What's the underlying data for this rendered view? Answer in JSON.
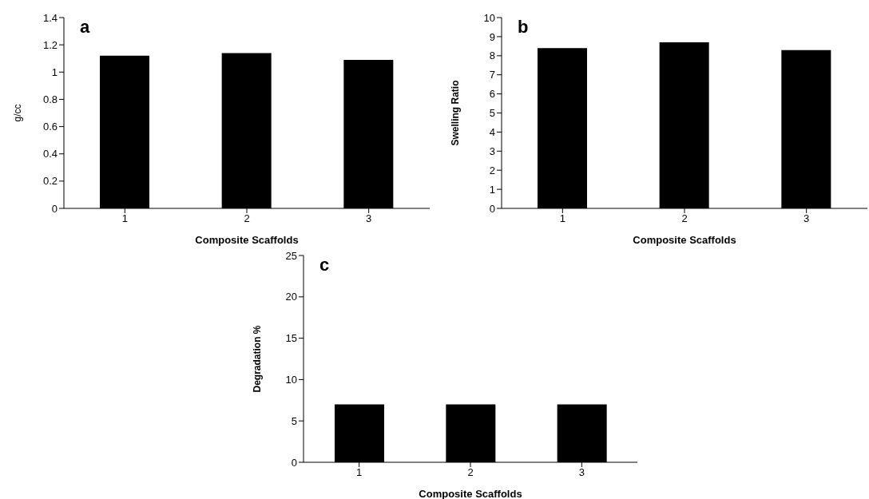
{
  "chart_data": [
    {
      "type": "bar",
      "categories": [
        "1",
        "2",
        "3"
      ],
      "values": [
        1.12,
        1.14,
        1.09
      ],
      "color": "#000000",
      "ylim": [
        0,
        1.4
      ],
      "yticks": [
        0,
        0.2,
        0.4,
        0.6,
        0.8,
        1,
        1.2,
        1.4
      ],
      "ylabel": "g/cc",
      "xlabel": "Composite Scaffolds",
      "annotations": [
        "a"
      ],
      "grid": false,
      "legend": false
    },
    {
      "type": "bar",
      "categories": [
        "1",
        "2",
        "3"
      ],
      "values": [
        8.4,
        8.7,
        8.3
      ],
      "color": "#000000",
      "ylim": [
        0,
        10
      ],
      "yticks": [
        0,
        1,
        2,
        3,
        4,
        5,
        6,
        7,
        8,
        9,
        10
      ],
      "ylabel": "Swelling Ratio",
      "xlabel": "Composite Scaffolds",
      "annotations": [
        "b"
      ],
      "grid": false,
      "legend": false
    },
    {
      "type": "bar",
      "categories": [
        "1",
        "2",
        "3"
      ],
      "values": [
        7,
        7,
        7
      ],
      "color": "#000000",
      "ylim": [
        0,
        25
      ],
      "yticks": [
        0,
        5,
        10,
        15,
        20,
        25
      ],
      "ylabel": "Degradation %",
      "xlabel": "Composite Scaffolds",
      "annotations": [
        "c"
      ],
      "grid": false,
      "legend": false
    }
  ]
}
